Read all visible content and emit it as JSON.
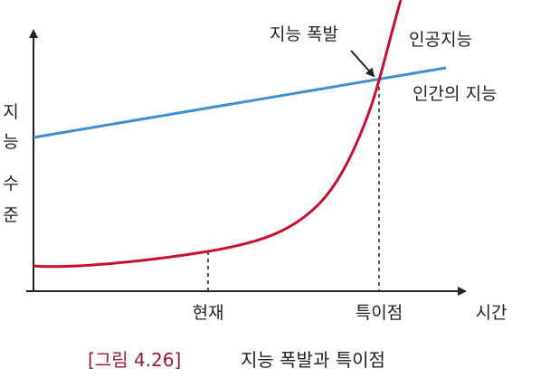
{
  "chart_data": {
    "type": "line",
    "xlabel": "시간",
    "ylabel": "지능 수준",
    "ylabel_chars": [
      "지",
      "능",
      "수",
      "준"
    ],
    "x_ticks": [
      "현재",
      "특이점"
    ],
    "series": [
      {
        "name": "인공지능",
        "color": "#c8102e"
      },
      {
        "name": "인간의 지능",
        "color": "#3d8fd1"
      }
    ],
    "annotation": "지능 폭발",
    "grid": false
  },
  "caption": {
    "number": "[그림 4.26]",
    "title": "지능 폭발과 특이점"
  },
  "colors": {
    "ai": "#c8102e",
    "human": "#3d8fd1",
    "axis": "#222222",
    "caption_number": "#9b1b32"
  }
}
